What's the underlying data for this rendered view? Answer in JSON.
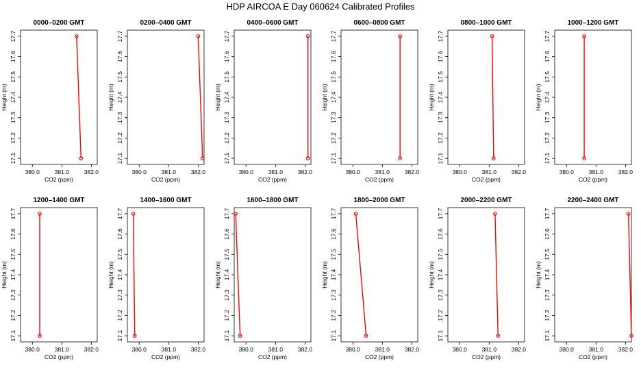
{
  "title": "HDP  AIRCOA E  Day 060624  Calibrated Profiles",
  "colors": {
    "series": "#ff0000",
    "axis": "#000000"
  },
  "chart_data": [
    {
      "type": "line",
      "title": "0000–0200 GMT",
      "xlabel": "CO2 (ppm)",
      "ylabel": "Height (m)",
      "xlim": [
        379.6,
        382.2
      ],
      "ylim": [
        17.07,
        17.73
      ],
      "x_ticks": [
        "380.0",
        "381.0",
        "382.0"
      ],
      "y_ticks": [
        "17.1",
        "17.2",
        "17.3",
        "17.4",
        "17.5",
        "17.6",
        "17.7"
      ],
      "points": [
        {
          "x": 381.5,
          "y": 17.7
        },
        {
          "x": 381.65,
          "y": 17.1
        }
      ]
    },
    {
      "type": "line",
      "title": "0200–0400 GMT",
      "xlabel": "CO2 (ppm)",
      "ylabel": "Height (m)",
      "xlim": [
        379.6,
        382.2
      ],
      "ylim": [
        17.07,
        17.73
      ],
      "x_ticks": [
        "380.0",
        "381.0",
        "382.0"
      ],
      "y_ticks": [
        "17.1",
        "17.2",
        "17.3",
        "17.4",
        "17.5",
        "17.6",
        "17.7"
      ],
      "points": [
        {
          "x": 382.0,
          "y": 17.7
        },
        {
          "x": 382.15,
          "y": 17.1
        }
      ]
    },
    {
      "type": "line",
      "title": "0400–0600 GMT",
      "xlabel": "CO2 (ppm)",
      "ylabel": "Height (m)",
      "xlim": [
        379.6,
        382.2
      ],
      "ylim": [
        17.07,
        17.73
      ],
      "x_ticks": [
        "380.0",
        "381.0",
        "382.0"
      ],
      "y_ticks": [
        "17.1",
        "17.2",
        "17.3",
        "17.4",
        "17.5",
        "17.6",
        "17.7"
      ],
      "points": [
        {
          "x": 382.1,
          "y": 17.7
        },
        {
          "x": 382.1,
          "y": 17.1
        }
      ]
    },
    {
      "type": "line",
      "title": "0600–0800 GMT",
      "xlabel": "CO2 (ppm)",
      "ylabel": "Height (m)",
      "xlim": [
        379.6,
        382.2
      ],
      "ylim": [
        17.07,
        17.73
      ],
      "x_ticks": [
        "380.0",
        "381.0",
        "382.0"
      ],
      "y_ticks": [
        "17.1",
        "17.2",
        "17.3",
        "17.4",
        "17.5",
        "17.6",
        "17.7"
      ],
      "points": [
        {
          "x": 381.6,
          "y": 17.7
        },
        {
          "x": 381.6,
          "y": 17.1
        }
      ]
    },
    {
      "type": "line",
      "title": "0800–1000 GMT",
      "xlabel": "CO2 (ppm)",
      "ylabel": "Height (m)",
      "xlim": [
        379.6,
        382.2
      ],
      "ylim": [
        17.07,
        17.73
      ],
      "x_ticks": [
        "380.0",
        "381.0",
        "382.0"
      ],
      "y_ticks": [
        "17.1",
        "17.2",
        "17.3",
        "17.4",
        "17.5",
        "17.6",
        "17.7"
      ],
      "points": [
        {
          "x": 381.1,
          "y": 17.7
        },
        {
          "x": 381.15,
          "y": 17.1
        }
      ]
    },
    {
      "type": "line",
      "title": "1000–1200 GMT",
      "xlabel": "CO2 (ppm)",
      "ylabel": "Height (m)",
      "xlim": [
        379.6,
        382.2
      ],
      "ylim": [
        17.07,
        17.73
      ],
      "x_ticks": [
        "380.0",
        "381.0",
        "382.0"
      ],
      "y_ticks": [
        "17.1",
        "17.2",
        "17.3",
        "17.4",
        "17.5",
        "17.6",
        "17.7"
      ],
      "points": [
        {
          "x": 380.6,
          "y": 17.7
        },
        {
          "x": 380.6,
          "y": 17.1
        }
      ]
    },
    {
      "type": "line",
      "title": "1200–1400 GMT",
      "xlabel": "CO2 (ppm)",
      "ylabel": "Height (m)",
      "xlim": [
        379.6,
        382.2
      ],
      "ylim": [
        17.07,
        17.73
      ],
      "x_ticks": [
        "380.0",
        "381.0",
        "382.0"
      ],
      "y_ticks": [
        "17.1",
        "17.2",
        "17.3",
        "17.4",
        "17.5",
        "17.6",
        "17.7"
      ],
      "points": [
        {
          "x": 380.25,
          "y": 17.7
        },
        {
          "x": 380.25,
          "y": 17.1
        }
      ]
    },
    {
      "type": "line",
      "title": "1400–1600 GMT",
      "xlabel": "CO2 (ppm)",
      "ylabel": "Height (m)",
      "xlim": [
        379.6,
        382.2
      ],
      "ylim": [
        17.07,
        17.73
      ],
      "x_ticks": [
        "380.0",
        "381.0",
        "382.0"
      ],
      "y_ticks": [
        "17.1",
        "17.2",
        "17.3",
        "17.4",
        "17.5",
        "17.6",
        "17.7"
      ],
      "points": [
        {
          "x": 379.8,
          "y": 17.7
        },
        {
          "x": 379.85,
          "y": 17.1
        }
      ]
    },
    {
      "type": "line",
      "title": "1600–1800 GMT",
      "xlabel": "CO2 (ppm)",
      "ylabel": "Height (m)",
      "xlim": [
        379.6,
        382.2
      ],
      "ylim": [
        17.07,
        17.73
      ],
      "x_ticks": [
        "380.0",
        "381.0",
        "382.0"
      ],
      "y_ticks": [
        "17.1",
        "17.2",
        "17.3",
        "17.4",
        "17.5",
        "17.6",
        "17.7"
      ],
      "points": [
        {
          "x": 379.65,
          "y": 17.7
        },
        {
          "x": 379.8,
          "y": 17.1
        }
      ]
    },
    {
      "type": "line",
      "title": "1800–2000 GMT",
      "xlabel": "CO2 (ppm)",
      "ylabel": "Height (m)",
      "xlim": [
        379.6,
        382.2
      ],
      "ylim": [
        17.07,
        17.73
      ],
      "x_ticks": [
        "380.0",
        "381.0",
        "382.0"
      ],
      "y_ticks": [
        "17.1",
        "17.2",
        "17.3",
        "17.4",
        "17.5",
        "17.6",
        "17.7"
      ],
      "points": [
        {
          "x": 380.1,
          "y": 17.7
        },
        {
          "x": 380.45,
          "y": 17.1
        }
      ]
    },
    {
      "type": "line",
      "title": "2000–2200 GMT",
      "xlabel": "CO2 (ppm)",
      "ylabel": "Height (m)",
      "xlim": [
        379.6,
        382.2
      ],
      "ylim": [
        17.07,
        17.73
      ],
      "x_ticks": [
        "380.0",
        "381.0",
        "382.0"
      ],
      "y_ticks": [
        "17.1",
        "17.2",
        "17.3",
        "17.4",
        "17.5",
        "17.6",
        "17.7"
      ],
      "points": [
        {
          "x": 381.2,
          "y": 17.7
        },
        {
          "x": 381.3,
          "y": 17.1
        }
      ]
    },
    {
      "type": "line",
      "title": "2200–2400 GMT",
      "xlabel": "CO2 (ppm)",
      "ylabel": "Height (m)",
      "xlim": [
        379.6,
        382.2
      ],
      "ylim": [
        17.07,
        17.73
      ],
      "x_ticks": [
        "380.0",
        "381.0",
        "382.0"
      ],
      "y_ticks": [
        "17.1",
        "17.2",
        "17.3",
        "17.4",
        "17.5",
        "17.6",
        "17.7"
      ],
      "points": [
        {
          "x": 382.1,
          "y": 17.7
        },
        {
          "x": 382.2,
          "y": 17.1
        }
      ]
    }
  ]
}
